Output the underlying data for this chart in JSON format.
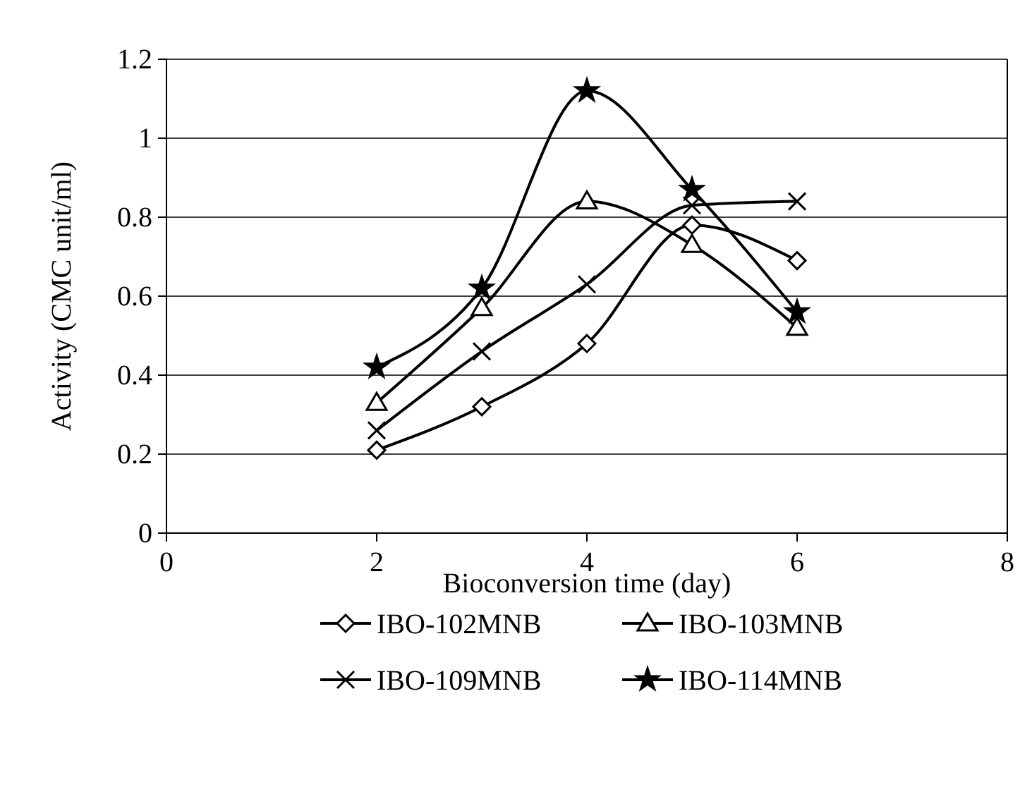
{
  "chart_data": {
    "type": "line",
    "xlabel": "Bioconversion time (day)",
    "ylabel": "Activity (CMC unit/ml)",
    "x": [
      2,
      3,
      4,
      5,
      6
    ],
    "xlim": [
      0,
      8
    ],
    "xticks": [
      0,
      2,
      4,
      6,
      8
    ],
    "ylim": [
      0,
      1.2
    ],
    "yticks": [
      0,
      0.2,
      0.4,
      0.6,
      0.8,
      1,
      1.2
    ],
    "grid": "y",
    "legend": "bottom",
    "series": [
      {
        "name": "IBO-102MNB",
        "color": "#000000",
        "marker": "diamond",
        "values": [
          0.21,
          0.32,
          0.48,
          0.78,
          0.69
        ]
      },
      {
        "name": "IBO-103MNB",
        "color": "#000000",
        "marker": "triangle",
        "values": [
          0.33,
          0.57,
          0.84,
          0.73,
          0.52
        ]
      },
      {
        "name": "IBO-109MNB",
        "color": "#000000",
        "marker": "cross",
        "values": [
          0.26,
          0.46,
          0.63,
          0.83,
          0.84
        ]
      },
      {
        "name": "IBO-114MNB",
        "color": "#000000",
        "marker": "star",
        "values": [
          0.42,
          0.62,
          1.12,
          0.87,
          0.56
        ]
      }
    ]
  }
}
